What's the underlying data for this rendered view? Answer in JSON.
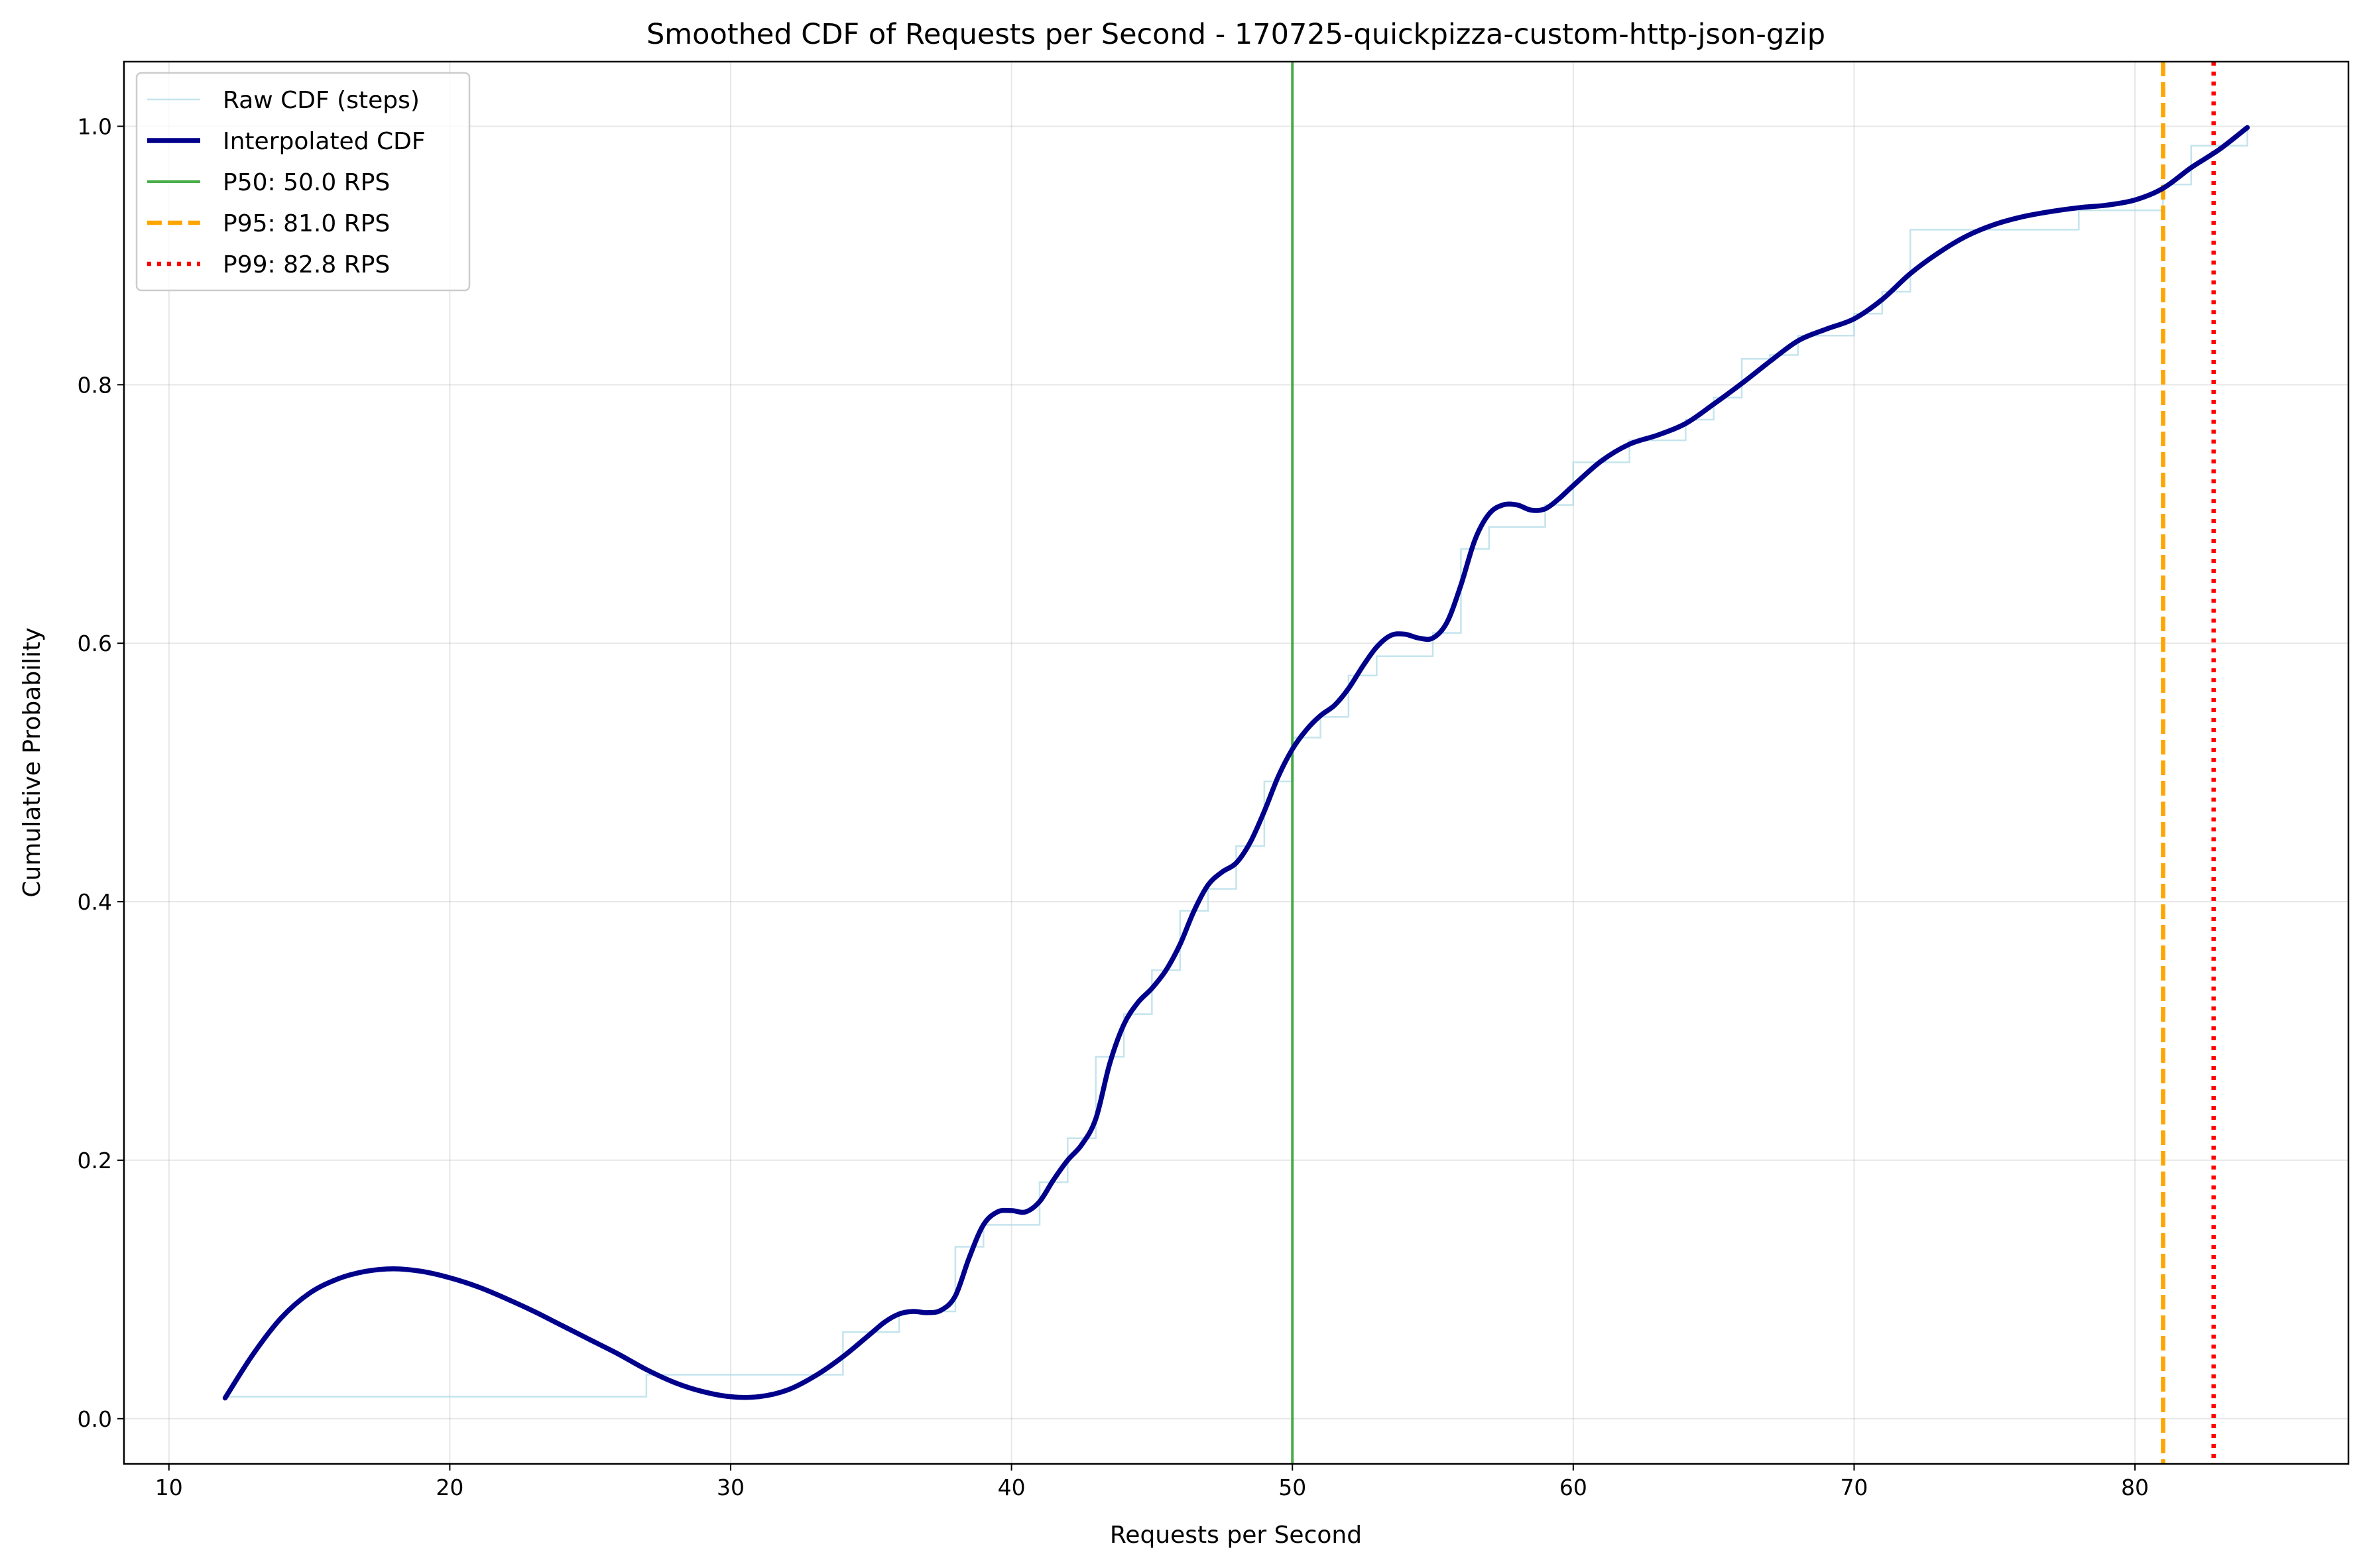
{
  "chart_data": {
    "type": "line",
    "title": "Smoothed CDF of Requests per Second - 170725-quickpizza-custom-http-json-gzip",
    "xlabel": "Requests per Second",
    "ylabel": "Cumulative Probability",
    "xlim": [
      8.4,
      87.6
    ],
    "ylim": [
      -0.035,
      1.05
    ],
    "xticks": [
      10,
      20,
      30,
      40,
      50,
      60,
      70,
      80
    ],
    "yticks": [
      0.0,
      0.2,
      0.4,
      0.6,
      0.8,
      1.0
    ],
    "xtick_labels": [
      "10",
      "20",
      "30",
      "40",
      "50",
      "60",
      "70",
      "80"
    ],
    "ytick_labels": [
      "0.0",
      "0.2",
      "0.4",
      "0.6",
      "0.8",
      "1.0"
    ],
    "grid": true,
    "legend_position": "top-left",
    "series": [
      {
        "name": "Raw CDF (steps)",
        "style": "step",
        "color": "#add8e6",
        "points": [
          [
            12,
            0.017
          ],
          [
            27,
            0.017
          ],
          [
            27,
            0.034
          ],
          [
            34,
            0.034
          ],
          [
            34,
            0.067
          ],
          [
            36,
            0.067
          ],
          [
            36,
            0.083
          ],
          [
            38,
            0.083
          ],
          [
            38,
            0.133
          ],
          [
            39,
            0.133
          ],
          [
            39,
            0.15
          ],
          [
            41,
            0.15
          ],
          [
            41,
            0.183
          ],
          [
            42,
            0.183
          ],
          [
            42,
            0.217
          ],
          [
            43,
            0.217
          ],
          [
            43,
            0.28
          ],
          [
            44,
            0.28
          ],
          [
            44,
            0.313
          ],
          [
            45,
            0.313
          ],
          [
            45,
            0.347
          ],
          [
            46,
            0.347
          ],
          [
            46,
            0.393
          ],
          [
            47,
            0.393
          ],
          [
            47,
            0.41
          ],
          [
            48,
            0.41
          ],
          [
            48,
            0.443
          ],
          [
            49,
            0.443
          ],
          [
            49,
            0.493
          ],
          [
            50,
            0.493
          ],
          [
            50,
            0.527
          ],
          [
            51,
            0.527
          ],
          [
            51,
            0.543
          ],
          [
            52,
            0.543
          ],
          [
            52,
            0.575
          ],
          [
            53,
            0.575
          ],
          [
            53,
            0.59
          ],
          [
            55,
            0.59
          ],
          [
            55,
            0.608
          ],
          [
            56,
            0.608
          ],
          [
            56,
            0.673
          ],
          [
            57,
            0.673
          ],
          [
            57,
            0.69
          ],
          [
            59,
            0.69
          ],
          [
            59,
            0.707
          ],
          [
            60,
            0.707
          ],
          [
            60,
            0.74
          ],
          [
            62,
            0.74
          ],
          [
            62,
            0.757
          ],
          [
            64,
            0.757
          ],
          [
            64,
            0.773
          ],
          [
            65,
            0.773
          ],
          [
            65,
            0.79
          ],
          [
            66,
            0.79
          ],
          [
            66,
            0.82
          ],
          [
            67,
            0.82
          ],
          [
            67,
            0.823
          ],
          [
            68,
            0.823
          ],
          [
            68,
            0.838
          ],
          [
            70,
            0.838
          ],
          [
            70,
            0.855
          ],
          [
            71,
            0.855
          ],
          [
            71,
            0.872
          ],
          [
            72,
            0.872
          ],
          [
            72,
            0.92
          ],
          [
            78,
            0.92
          ],
          [
            78,
            0.935
          ],
          [
            81,
            0.935
          ],
          [
            81,
            0.955
          ],
          [
            82,
            0.955
          ],
          [
            82,
            0.985
          ],
          [
            84,
            0.985
          ],
          [
            84,
            1.0
          ]
        ]
      },
      {
        "name": "Interpolated CDF",
        "style": "smooth",
        "color": "#00008b",
        "points": [
          [
            12,
            0.016
          ],
          [
            13,
            0.05
          ],
          [
            14,
            0.078
          ],
          [
            15,
            0.097
          ],
          [
            16,
            0.108
          ],
          [
            17,
            0.114
          ],
          [
            18,
            0.116
          ],
          [
            19,
            0.114
          ],
          [
            20,
            0.109
          ],
          [
            21,
            0.102
          ],
          [
            22,
            0.093
          ],
          [
            23,
            0.083
          ],
          [
            24,
            0.072
          ],
          [
            25,
            0.061
          ],
          [
            26,
            0.05
          ],
          [
            27,
            0.038
          ],
          [
            28,
            0.028
          ],
          [
            29,
            0.021
          ],
          [
            30,
            0.017
          ],
          [
            31,
            0.017
          ],
          [
            32,
            0.022
          ],
          [
            33,
            0.033
          ],
          [
            34,
            0.048
          ],
          [
            35,
            0.066
          ],
          [
            35.5,
            0.075
          ],
          [
            36,
            0.081
          ],
          [
            36.5,
            0.083
          ],
          [
            37,
            0.082
          ],
          [
            37.5,
            0.084
          ],
          [
            38,
            0.095
          ],
          [
            38.5,
            0.125
          ],
          [
            39,
            0.15
          ],
          [
            39.5,
            0.16
          ],
          [
            40,
            0.161
          ],
          [
            40.5,
            0.16
          ],
          [
            41,
            0.168
          ],
          [
            41.5,
            0.185
          ],
          [
            42,
            0.2
          ],
          [
            42.5,
            0.212
          ],
          [
            43,
            0.232
          ],
          [
            43.5,
            0.275
          ],
          [
            44,
            0.305
          ],
          [
            44.5,
            0.322
          ],
          [
            45,
            0.333
          ],
          [
            45.5,
            0.347
          ],
          [
            46,
            0.367
          ],
          [
            46.5,
            0.393
          ],
          [
            47,
            0.413
          ],
          [
            47.5,
            0.423
          ],
          [
            48,
            0.43
          ],
          [
            48.5,
            0.446
          ],
          [
            49,
            0.47
          ],
          [
            49.5,
            0.497
          ],
          [
            50,
            0.518
          ],
          [
            50.5,
            0.533
          ],
          [
            51,
            0.544
          ],
          [
            51.5,
            0.552
          ],
          [
            52,
            0.565
          ],
          [
            52.5,
            0.582
          ],
          [
            53,
            0.597
          ],
          [
            53.5,
            0.606
          ],
          [
            54,
            0.607
          ],
          [
            54.5,
            0.604
          ],
          [
            55,
            0.604
          ],
          [
            55.5,
            0.616
          ],
          [
            56,
            0.645
          ],
          [
            56.5,
            0.68
          ],
          [
            57,
            0.7
          ],
          [
            57.5,
            0.707
          ],
          [
            58,
            0.707
          ],
          [
            58.5,
            0.703
          ],
          [
            59,
            0.704
          ],
          [
            59.5,
            0.712
          ],
          [
            60,
            0.722
          ],
          [
            61,
            0.741
          ],
          [
            62,
            0.754
          ],
          [
            63,
            0.761
          ],
          [
            64,
            0.77
          ],
          [
            65,
            0.785
          ],
          [
            66,
            0.801
          ],
          [
            67,
            0.818
          ],
          [
            68,
            0.834
          ],
          [
            69,
            0.843
          ],
          [
            70,
            0.851
          ],
          [
            71,
            0.866
          ],
          [
            72,
            0.886
          ],
          [
            73,
            0.902
          ],
          [
            74,
            0.915
          ],
          [
            75,
            0.924
          ],
          [
            76,
            0.93
          ],
          [
            77,
            0.934
          ],
          [
            78,
            0.937
          ],
          [
            79,
            0.939
          ],
          [
            80,
            0.943
          ],
          [
            81,
            0.952
          ],
          [
            82,
            0.968
          ],
          [
            83,
            0.982
          ],
          [
            84,
            0.999
          ]
        ]
      }
    ],
    "reference_lines": [
      {
        "name": "P50: 50.0 RPS",
        "x": 50.0,
        "color": "#2ca02c",
        "style": "solid"
      },
      {
        "name": "P95: 81.0 RPS",
        "x": 81.0,
        "color": "#ffa500",
        "style": "dashed"
      },
      {
        "name": "P99: 82.8 RPS",
        "x": 82.8,
        "color": "#ff0000",
        "style": "dotted"
      }
    ]
  }
}
